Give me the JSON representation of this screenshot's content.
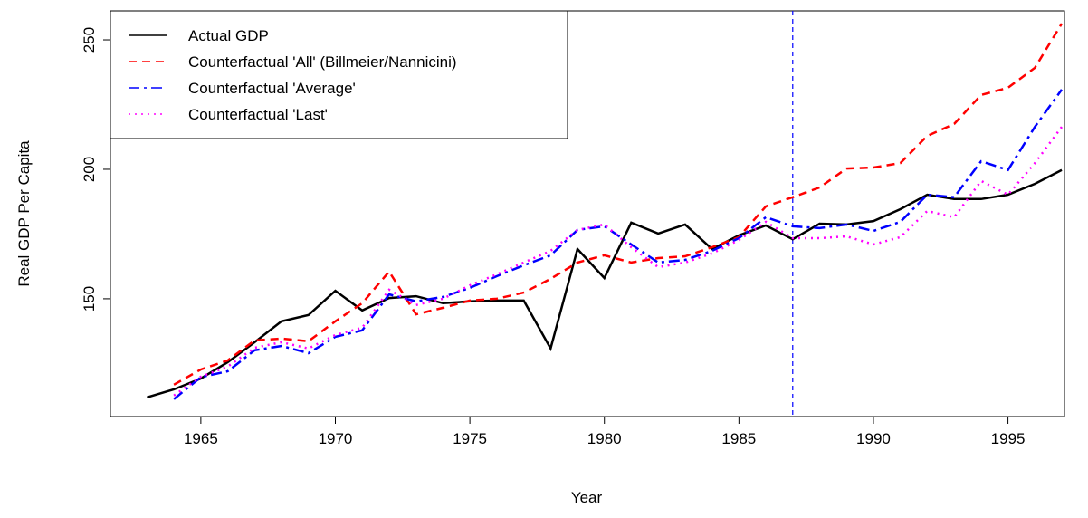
{
  "chart_data": {
    "type": "line",
    "xlabel": "Year",
    "ylabel": "Real GDP Per Capita",
    "x": [
      1963,
      1964,
      1965,
      1966,
      1967,
      1968,
      1969,
      1970,
      1971,
      1972,
      1973,
      1974,
      1975,
      1976,
      1977,
      1978,
      1979,
      1980,
      1981,
      1982,
      1983,
      1984,
      1985,
      1986,
      1987,
      1988,
      1989,
      1990,
      1991,
      1992,
      1993,
      1994,
      1995,
      1996,
      1997
    ],
    "series": [
      {
        "name": "Actual GDP",
        "color": "#000000",
        "linestyle": "solid",
        "values": [
          111.9,
          115,
          119.2,
          125.5,
          133.2,
          141.3,
          143.7,
          153.1,
          145.5,
          150.3,
          151,
          148.3,
          149,
          149.3,
          149.3,
          130.8,
          169.2,
          158,
          179.4,
          175.2,
          178.7,
          169.2,
          174.5,
          178.3,
          173,
          179,
          178.7,
          180,
          184.6,
          190.2,
          188.5,
          188.5,
          190.2,
          194.4,
          199.7
        ]
      },
      {
        "name": "Counterfactual 'All' (Billmeier/Nannicini)",
        "color": "#ff0000",
        "linestyle": "dashed",
        "values": [
          null,
          116.8,
          122.7,
          126.2,
          133.9,
          134.6,
          133.6,
          141.3,
          148.3,
          160.5,
          144,
          146.5,
          149.3,
          150,
          152.4,
          157.7,
          164,
          166.8,
          164,
          165.7,
          166.4,
          169.9,
          173.8,
          185.7,
          189.2,
          193,
          200.3,
          200.7,
          202.4,
          212.9,
          217.5,
          228.7,
          231.5,
          239.2,
          256.3
        ]
      },
      {
        "name": "Counterfactual 'Average'",
        "color": "#0000ff",
        "linestyle": "dotdash",
        "values": [
          null,
          111.2,
          119.7,
          122,
          130.1,
          131.8,
          129,
          135.3,
          137.8,
          151.7,
          149,
          150.7,
          154.2,
          158.7,
          162.9,
          166.8,
          176.6,
          178,
          171,
          164,
          165,
          168.5,
          173.4,
          181.5,
          178,
          177.3,
          178.7,
          176.2,
          179.7,
          190.2,
          189.2,
          203.1,
          199.7,
          216.4,
          230.8
        ]
      },
      {
        "name": "Counterfactual 'Last'",
        "color": "#ff00ff",
        "linestyle": "dotted",
        "values": [
          null,
          112.6,
          119.9,
          123.8,
          131.1,
          133.2,
          130.8,
          136,
          138.8,
          153.5,
          147.6,
          150,
          155.2,
          159.4,
          164,
          168.5,
          176.6,
          178.7,
          169.9,
          162.2,
          164,
          167.5,
          172.7,
          179.7,
          173.4,
          173.4,
          174.1,
          171,
          173.8,
          183.9,
          181.5,
          195.5,
          190.2,
          202.4,
          216.4
        ]
      }
    ],
    "vline": {
      "x": 1987,
      "color": "#0000ff",
      "linestyle": "dashed"
    },
    "xlim": [
      1961.64,
      1997.1
    ],
    "ylim": [
      104.5,
      261.2
    ],
    "xticks": [
      1965,
      1970,
      1975,
      1980,
      1985,
      1990,
      1995
    ],
    "yticks": [
      150,
      200,
      250
    ],
    "legend": "top-left"
  }
}
